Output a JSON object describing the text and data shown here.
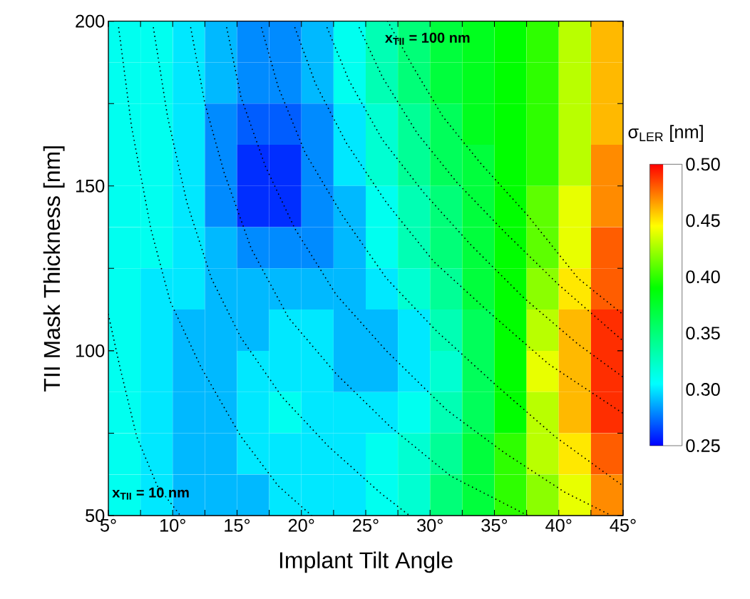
{
  "chart_data": {
    "type": "heatmap",
    "xlabel": "Implant Tilt Angle",
    "ylabel": "TII Mask Thickness [nm]",
    "clabel": "σ$_{LER}$ [nm]",
    "xlim": [
      5,
      45
    ],
    "ylim": [
      50,
      200
    ],
    "xticks": [
      {
        "value": 5,
        "label": "5°"
      },
      {
        "value": 7.5,
        "label": null
      },
      {
        "value": 10,
        "label": "10°"
      },
      {
        "value": 12.5,
        "label": null
      },
      {
        "value": 15,
        "label": "15°"
      },
      {
        "value": 17.5,
        "label": null
      },
      {
        "value": 20,
        "label": "20°"
      },
      {
        "value": 22.5,
        "label": null
      },
      {
        "value": 25,
        "label": "25°"
      },
      {
        "value": 27.5,
        "label": null
      },
      {
        "value": 30,
        "label": "30°"
      },
      {
        "value": 32.5,
        "label": null
      },
      {
        "value": 35,
        "label": "35°"
      },
      {
        "value": 37.5,
        "label": null
      },
      {
        "value": 40,
        "label": "40°"
      },
      {
        "value": 42.5,
        "label": null
      },
      {
        "value": 45,
        "label": "45°"
      }
    ],
    "yticks": [
      50,
      {
        "value": 75,
        "label": null
      },
      100,
      {
        "value": 125,
        "label": null
      },
      150,
      {
        "value": 175,
        "label": null
      },
      200
    ],
    "clim": [
      0.25,
      0.5
    ],
    "cticks": [
      0.25,
      {
        "value": 0.3,
        "label": "0.30"
      },
      0.35,
      {
        "value": 0.4,
        "label": "0.40"
      },
      0.45,
      {
        "value": 0.5,
        "label": "0.50"
      }
    ],
    "cells": [
      [
        0.31,
        0.31,
        0.3,
        0.29,
        0.28,
        0.28,
        0.29,
        0.31,
        0.33,
        0.35,
        0.37,
        0.38,
        0.39,
        0.4,
        0.43,
        0.46
      ],
      [
        0.31,
        0.31,
        0.3,
        0.29,
        0.28,
        0.28,
        0.29,
        0.31,
        0.33,
        0.35,
        0.37,
        0.38,
        0.39,
        0.4,
        0.43,
        0.46
      ],
      [
        0.31,
        0.31,
        0.3,
        0.28,
        0.27,
        0.27,
        0.28,
        0.3,
        0.32,
        0.34,
        0.36,
        0.38,
        0.39,
        0.4,
        0.43,
        0.46
      ],
      [
        0.31,
        0.31,
        0.3,
        0.28,
        0.26,
        0.26,
        0.28,
        0.3,
        0.32,
        0.34,
        0.36,
        0.37,
        0.39,
        0.4,
        0.43,
        0.47
      ],
      [
        0.31,
        0.31,
        0.3,
        0.28,
        0.26,
        0.26,
        0.28,
        0.29,
        0.31,
        0.33,
        0.35,
        0.37,
        0.39,
        0.41,
        0.44,
        0.47
      ],
      [
        0.31,
        0.31,
        0.3,
        0.29,
        0.28,
        0.28,
        0.28,
        0.29,
        0.31,
        0.33,
        0.35,
        0.37,
        0.39,
        0.41,
        0.44,
        0.48
      ],
      [
        0.31,
        0.3,
        0.3,
        0.29,
        0.29,
        0.29,
        0.29,
        0.29,
        0.3,
        0.32,
        0.34,
        0.37,
        0.39,
        0.42,
        0.45,
        0.48
      ],
      [
        0.31,
        0.3,
        0.29,
        0.29,
        0.29,
        0.3,
        0.3,
        0.29,
        0.29,
        0.3,
        0.33,
        0.36,
        0.39,
        0.43,
        0.46,
        0.49
      ],
      [
        0.31,
        0.3,
        0.29,
        0.29,
        0.3,
        0.3,
        0.3,
        0.29,
        0.29,
        0.3,
        0.32,
        0.36,
        0.39,
        0.44,
        0.46,
        0.49
      ],
      [
        0.31,
        0.3,
        0.29,
        0.29,
        0.3,
        0.31,
        0.3,
        0.3,
        0.3,
        0.31,
        0.33,
        0.36,
        0.39,
        0.43,
        0.46,
        0.49
      ],
      [
        0.31,
        0.3,
        0.29,
        0.29,
        0.3,
        0.3,
        0.3,
        0.3,
        0.31,
        0.32,
        0.34,
        0.37,
        0.4,
        0.43,
        0.45,
        0.48
      ],
      [
        0.31,
        0.3,
        0.29,
        0.29,
        0.29,
        0.3,
        0.3,
        0.3,
        0.31,
        0.32,
        0.35,
        0.37,
        0.4,
        0.42,
        0.44,
        0.47
      ]
    ],
    "line_style": "dotted",
    "series": [
      {
        "type": "line",
        "color": "#000000",
        "x": [
          5.0,
          5.9,
          7.2,
          8.8,
          10.6
        ],
        "values": [
          111,
          95,
          74,
          59,
          50
        ]
      },
      {
        "type": "line",
        "color": "#000000",
        "x": [
          5.8,
          6.8,
          8.3,
          9.8,
          12.2,
          15.3,
          18.2,
          20.8
        ],
        "values": [
          198,
          168,
          137,
          115,
          95,
          74,
          59,
          50
        ]
      },
      {
        "type": "line",
        "color": "#000000",
        "x": [
          8.5,
          9.6,
          11.1,
          13.0,
          15.3,
          18.5,
          22.1,
          26.1,
          28.4
        ],
        "values": [
          198,
          171,
          145,
          122,
          104,
          86,
          71,
          57,
          50
        ]
      },
      {
        "type": "line",
        "color": "#000000",
        "x": [
          11.4,
          12.5,
          14.0,
          16.1,
          19.0,
          22.7,
          26.9,
          31.6,
          37.6
        ],
        "values": [
          198,
          175,
          154,
          131,
          110,
          93,
          77,
          62,
          50
        ]
      },
      {
        "type": "line",
        "color": "#000000",
        "x": [
          14.2,
          15.3,
          17.2,
          19.5,
          22.7,
          26.6,
          31.3,
          35.8,
          40.5,
          44.1
        ],
        "values": [
          198,
          177,
          156,
          137,
          117,
          100,
          82,
          69,
          57,
          50
        ]
      },
      {
        "type": "line",
        "color": "#000000",
        "x": [
          16.9,
          18.2,
          20.3,
          23.2,
          26.6,
          30.5,
          35.0,
          39.7,
          45.0
        ],
        "values": [
          198,
          180,
          160,
          141,
          122,
          106,
          90,
          74,
          59
        ]
      },
      {
        "type": "line",
        "color": "#000000",
        "x": [
          19.5,
          21.1,
          23.5,
          26.6,
          30.3,
          34.5,
          39.2,
          45.0
        ],
        "values": [
          198,
          181,
          163,
          145,
          127,
          112,
          96,
          81
        ]
      },
      {
        "type": "line",
        "color": "#000000",
        "x": [
          22.0,
          23.7,
          26.3,
          29.5,
          33.2,
          37.3,
          41.5,
          45.0
        ],
        "values": [
          198,
          182,
          164,
          148,
          132,
          116,
          102,
          92
        ]
      },
      {
        "type": "line",
        "color": "#000000",
        "x": [
          24.5,
          26.3,
          29.0,
          32.1,
          35.8,
          40.0,
          45.0
        ],
        "values": [
          198,
          183,
          166,
          151,
          136,
          120,
          103
        ]
      },
      {
        "type": "line",
        "color": "#000000",
        "x": [
          26.7,
          28.7,
          31.0,
          33.9,
          37.6,
          41.5,
          45.0
        ],
        "values": [
          200,
          186,
          171,
          157,
          141,
          122,
          111
        ]
      }
    ],
    "annotations": [
      "x$_{TII}$ = 10 nm",
      "x$_{TII}$ = 100 nm"
    ]
  }
}
